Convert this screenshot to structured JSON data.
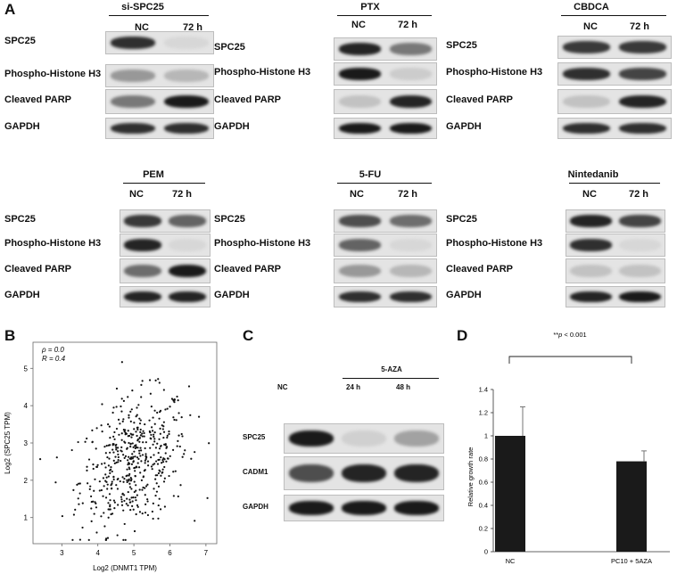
{
  "panelA": {
    "letter": "A",
    "blots": [
      {
        "title": "si-SPC25",
        "lanes": [
          "NC",
          "72 h"
        ],
        "rows": [
          "SPC25",
          "Phospho-Histone H3",
          "Cleaved PARP",
          "GAPDH"
        ]
      },
      {
        "title": "PTX",
        "lanes": [
          "NC",
          "72 h"
        ],
        "rows": [
          "SPC25",
          "Phospho-Histone H3",
          "Cleaved PARP",
          "GAPDH"
        ]
      },
      {
        "title": "CBDCA",
        "lanes": [
          "NC",
          "72 h"
        ],
        "rows": [
          "SPC25",
          "Phospho-Histone H3",
          "Cleaved PARP",
          "GAPDH"
        ]
      },
      {
        "title": "PEM",
        "lanes": [
          "NC",
          "72 h"
        ],
        "rows": [
          "SPC25",
          "Phospho-Histone H3",
          "Cleaved PARP",
          "GAPDH"
        ]
      },
      {
        "title": "5-FU",
        "lanes": [
          "NC",
          "72 h"
        ],
        "rows": [
          "SPC25",
          "Phospho-Histone H3",
          "Cleaved PARP",
          "GAPDH"
        ]
      },
      {
        "title": "Nintedanib",
        "lanes": [
          "NC",
          "72 h"
        ],
        "rows": [
          "SPC25",
          "Phospho-Histone H3",
          "Cleaved PARP",
          "GAPDH"
        ]
      }
    ],
    "intensities": [
      [
        [
          0.85,
          0.05
        ],
        [
          0.35,
          0.2
        ],
        [
          0.5,
          0.95
        ],
        [
          0.85,
          0.85
        ]
      ],
      [
        [
          0.9,
          0.5
        ],
        [
          0.95,
          0.1
        ],
        [
          0.15,
          0.9
        ],
        [
          0.95,
          0.95
        ]
      ],
      [
        [
          0.8,
          0.8
        ],
        [
          0.85,
          0.75
        ],
        [
          0.15,
          0.9
        ],
        [
          0.85,
          0.85
        ]
      ],
      [
        [
          0.8,
          0.6
        ],
        [
          0.9,
          0.05
        ],
        [
          0.55,
          0.95
        ],
        [
          0.9,
          0.9
        ]
      ],
      [
        [
          0.7,
          0.55
        ],
        [
          0.6,
          0.05
        ],
        [
          0.35,
          0.2
        ],
        [
          0.85,
          0.85
        ]
      ],
      [
        [
          0.9,
          0.75
        ],
        [
          0.85,
          0.05
        ],
        [
          0.15,
          0.15
        ],
        [
          0.9,
          0.95
        ]
      ]
    ]
  },
  "panelB": {
    "letter": "B",
    "rho": "ρ = 0.0",
    "R": "R = 0.4",
    "xlabel": "Log2 (DNMT1 TPM)",
    "ylabel": "Log2 (SPC25 TPM)"
  },
  "panelC": {
    "letter": "C",
    "treatment": "5-AZA",
    "lanes": [
      "NC",
      "24 h",
      "48 h"
    ],
    "rows": [
      "SPC25",
      "CADM1",
      "GAPDH"
    ],
    "intensities": [
      [
        0.95,
        0.08,
        0.3
      ],
      [
        0.7,
        0.9,
        0.9
      ],
      [
        0.95,
        0.95,
        0.95
      ]
    ]
  },
  "panelD": {
    "letter": "D",
    "significance": "**p < 0.001",
    "sig_prefix": "**",
    "sig_p": "p",
    "sig_rest": " < 0.001",
    "ylabel": "Relative growth rate"
  },
  "chart_data": [
    {
      "type": "scatter",
      "panel": "B",
      "xlabel": "Log2 (DNMT1 TPM)",
      "ylabel": "Log2 (SPC25 TPM)",
      "xlim": [
        2.2,
        7.3
      ],
      "ylim": [
        0.3,
        5.7
      ],
      "xticks": [
        3,
        4,
        5,
        6,
        7
      ],
      "yticks": [
        1,
        2,
        3,
        4,
        5
      ],
      "annotations": [
        "ρ = 0.0",
        "R = 0.4"
      ],
      "n_points": 500,
      "trend": "weak positive correlation, cloud centred near x≈5, y≈2.5"
    },
    {
      "type": "bar",
      "panel": "D",
      "categories": [
        "NC",
        "PC10 + 5AZA"
      ],
      "values": [
        1.0,
        0.78
      ],
      "errors": [
        0.25,
        0.09
      ],
      "ylabel": "Relative growth rate",
      "ylim": [
        0,
        1.4
      ],
      "yticks": [
        "0",
        "0.2",
        "0.4",
        "0.6",
        "0.8",
        "1",
        "1.2",
        "1.4"
      ],
      "annotation": "**p < 0.001"
    }
  ]
}
